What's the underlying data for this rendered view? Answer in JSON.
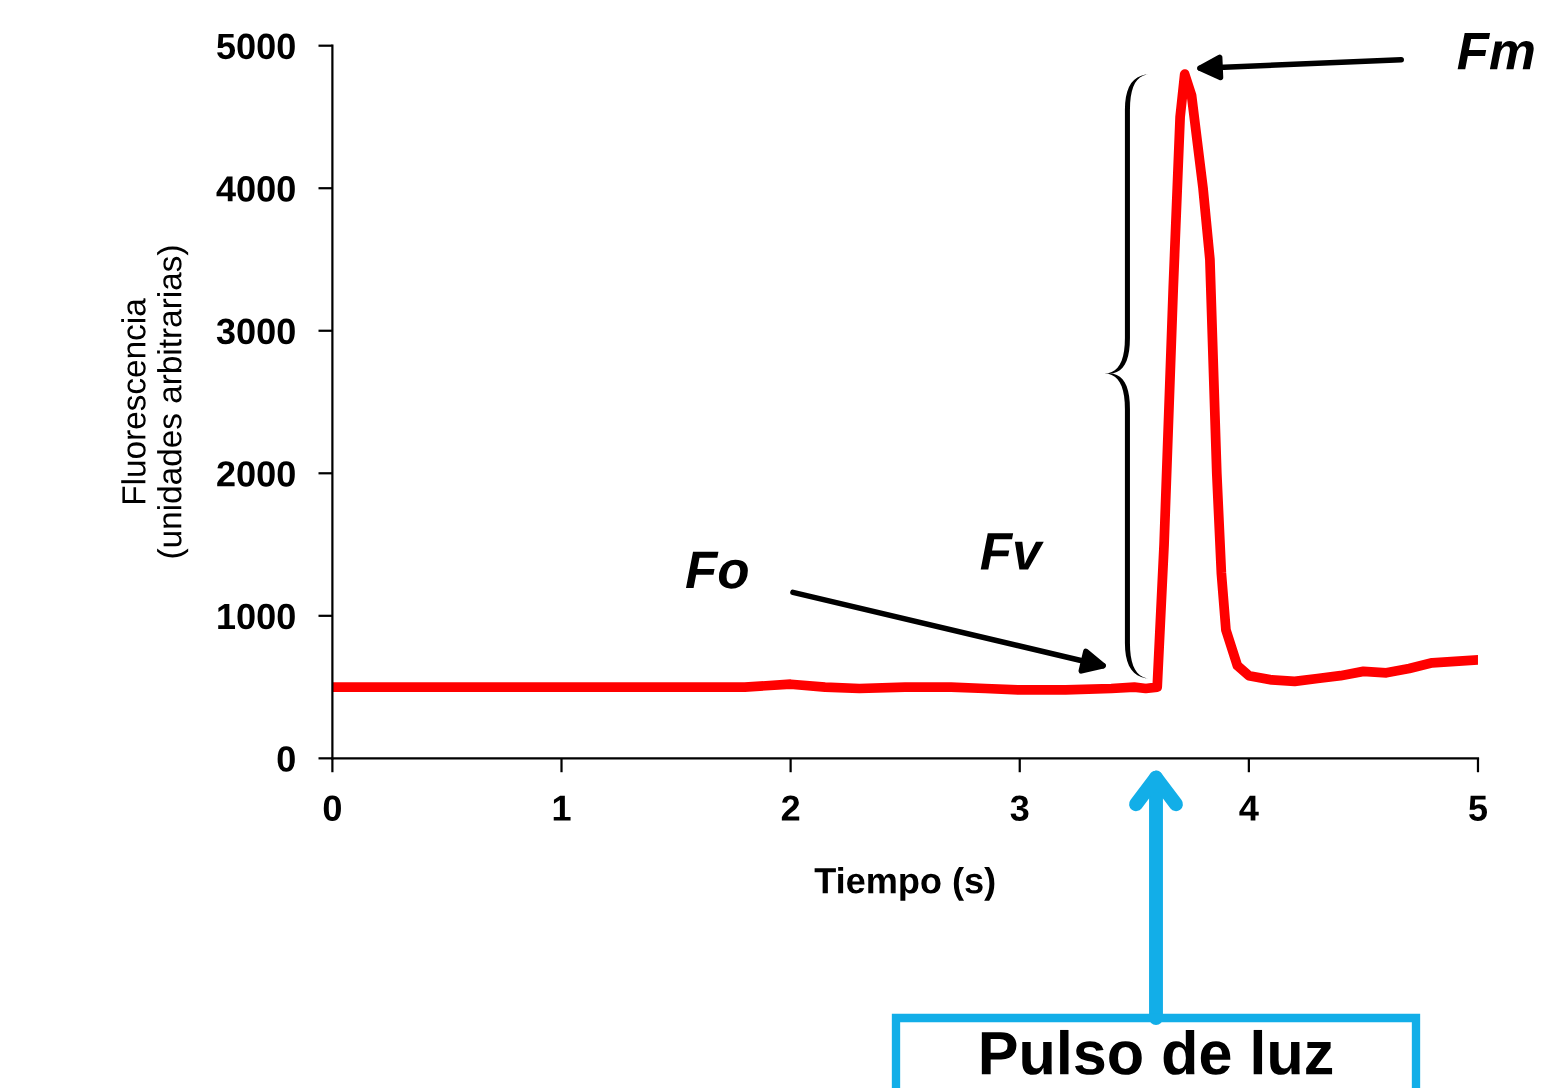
{
  "chart_data": {
    "type": "line",
    "xlabel": "Tiempo (s)",
    "ylabel": "Fluorescencia\n(unidades arbitrarias)",
    "x": [
      0,
      0.5,
      1,
      1.5,
      1.8,
      2.0,
      2.15,
      2.3,
      2.5,
      2.7,
      2.85,
      3.0,
      3.2,
      3.4,
      3.5,
      3.55,
      3.6,
      3.63,
      3.67,
      3.7,
      3.72,
      3.75,
      3.8,
      3.83,
      3.86,
      3.88,
      3.9,
      3.95,
      4.0,
      4.1,
      4.2,
      4.3,
      4.4,
      4.5,
      4.6,
      4.7,
      4.8,
      4.9,
      5.0
    ],
    "series": [
      {
        "color": "#ff0000",
        "values": [
          500,
          500,
          500,
          500,
          500,
          520,
          500,
          490,
          500,
          500,
          490,
          480,
          480,
          490,
          500,
          490,
          500,
          1500,
          3300,
          4500,
          4800,
          4650,
          4000,
          3500,
          2000,
          1300,
          900,
          650,
          580,
          550,
          540,
          560,
          580,
          610,
          600,
          630,
          670,
          680,
          690
        ]
      }
    ],
    "xlim": [
      0,
      5
    ],
    "ylim": [
      0,
      5000
    ],
    "xticks": [
      0,
      1,
      2,
      3,
      4,
      5
    ],
    "yticks": [
      0,
      1000,
      2000,
      3000,
      4000,
      5000
    ],
    "grid": false,
    "legend": false,
    "marker": "none",
    "line_style": "solid",
    "annotations": [
      "Fo",
      {
        "text": "Fm",
        "x": 3.76,
        "y": 4840
      },
      "Fv",
      "Pulso de luz"
    ]
  }
}
